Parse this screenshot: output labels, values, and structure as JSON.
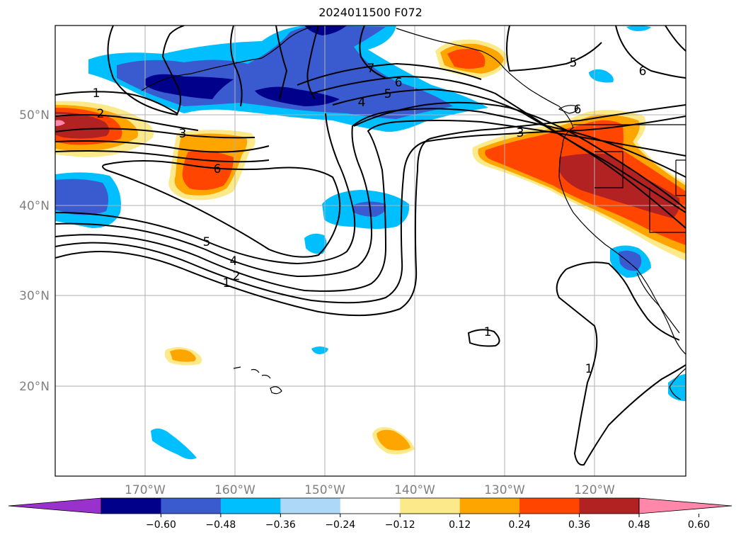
{
  "title": "2024011500 F072",
  "lat_labels": [
    "50°N",
    "40°N",
    "30°N",
    "20°N"
  ],
  "lon_labels": [
    "170°W",
    "160°W",
    "150°W",
    "140°W",
    "130°W",
    "120°W"
  ],
  "contour_labels": [
    "1",
    "2",
    "3",
    "6",
    "5",
    "4",
    "5",
    "6",
    "7",
    "6",
    "5",
    "6",
    "3",
    "5",
    "4",
    "2",
    "1",
    "1",
    "1"
  ],
  "colorbar": {
    "ticks": [
      "−0.60",
      "−0.48",
      "−0.36",
      "−0.24",
      "−0.12",
      "0.12",
      "0.24",
      "0.36",
      "0.48",
      "0.60"
    ],
    "colors": [
      "#9932cc",
      "#00008b",
      "#3a5bd0",
      "#00bfff",
      "#add8f8",
      "#ffffff",
      "#fce98a",
      "#ffa500",
      "#ff4500",
      "#b22222",
      "#ff88aa"
    ]
  }
}
